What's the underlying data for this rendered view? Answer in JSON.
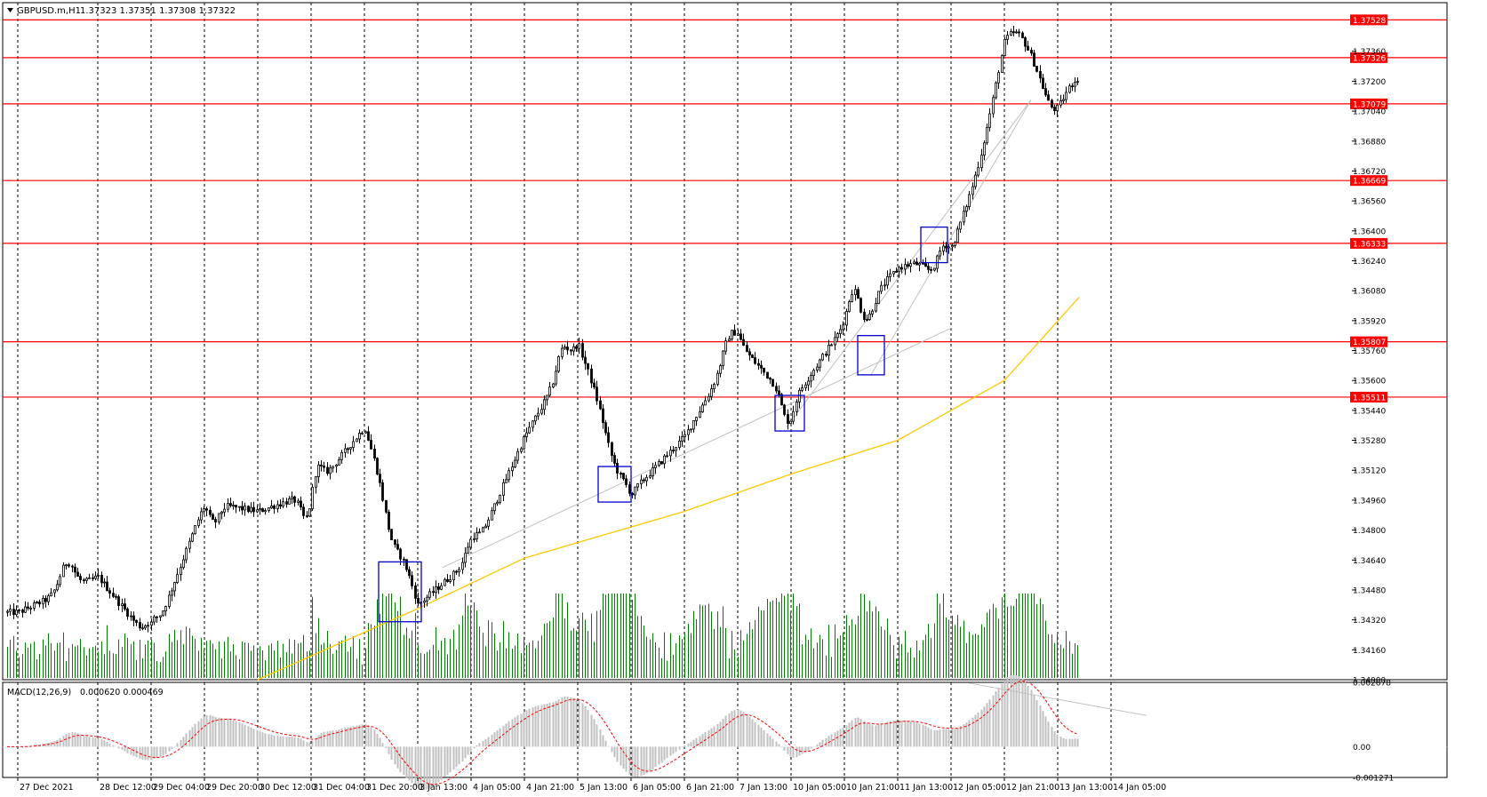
{
  "symbol_header": {
    "symbol": "GBPUSD.m,H1",
    "ohlc": "1.37323 1.37351 1.37308 1.37322"
  },
  "indicator_header": {
    "name": "MACD(12,26,9)",
    "values": "0.000620 0.000469"
  },
  "colors": {
    "background": "#ffffff",
    "grid": "#000000",
    "candle": "#000000",
    "level_line": "#ff0000",
    "level_label_bg": "#ff0000",
    "ma_line": "#ffc800",
    "volume": "#008000",
    "macd_hist": "#c0c0c0",
    "macd_signal": "#ff0000",
    "box": "#0000cc",
    "trendline": "#c0c0c0"
  },
  "icons": {
    "menu": "triangle-down-icon"
  },
  "chart_data": [
    {
      "type": "candlestick",
      "title": "GBPUSD.m,H1",
      "timeframe": "H1",
      "y_axis": {
        "range": [
          1.34,
          1.3762
        ],
        "ticks": [
          "1.37360",
          "1.37200",
          "1.37040",
          "1.36880",
          "1.36720",
          "1.36560",
          "1.36400",
          "1.36240",
          "1.36080",
          "1.35920",
          "1.35760",
          "1.35600",
          "1.35440",
          "1.35280",
          "1.35120",
          "1.34960",
          "1.34800",
          "1.34640",
          "1.34480",
          "1.34320",
          "1.34160",
          "1.34000"
        ]
      },
      "x_axis": {
        "time_labels": [
          "27 Dec 2021",
          "28 Dec 12:00",
          "29 Dec 04:00",
          "29 Dec 20:00",
          "30 Dec 12:00",
          "31 Dec 04:00",
          "31 Dec 20:00",
          "3 Jan 13:00",
          "4 Jan 05:00",
          "4 Jan 21:00",
          "5 Jan 13:00",
          "6 Jan 05:00",
          "6 Jan 21:00",
          "7 Jan 13:00",
          "10 Jan 05:00",
          "10 Jan 21:00",
          "11 Jan 13:00",
          "12 Jan 05:00",
          "12 Jan 21:00",
          "13 Jan 13:00",
          "14 Jan 05:00"
        ]
      },
      "horizontal_levels": [
        "1.37528",
        "1.37326",
        "1.37079",
        "1.36669",
        "1.36333",
        "1.35807",
        "1.35511"
      ],
      "series_key_points": [
        {
          "time": "27 Dec 2021",
          "price": 1.3436
        },
        {
          "time": "28 Dec 12:00",
          "price": 1.3455
        },
        {
          "time": "29 Dec 04:00",
          "price": 1.342
        },
        {
          "time": "29 Dec 20:00",
          "price": 1.3495
        },
        {
          "time": "30 Dec 12:00",
          "price": 1.349
        },
        {
          "time": "31 Dec 04:00",
          "price": 1.35
        },
        {
          "time": "31 Dec 20:00",
          "price": 1.3535
        },
        {
          "time": "3 Jan 13:00",
          "price": 1.344
        },
        {
          "time": "4 Jan 05:00",
          "price": 1.3465
        },
        {
          "time": "4 Jan 21:00",
          "price": 1.353
        },
        {
          "time": "5 Jan 13:00",
          "price": 1.358
        },
        {
          "time": "6 Jan 05:00",
          "price": 1.35
        },
        {
          "time": "6 Jan 21:00",
          "price": 1.353
        },
        {
          "time": "7 Jan 13:00",
          "price": 1.358
        },
        {
          "time": "10 Jan 05:00",
          "price": 1.3548
        },
        {
          "time": "10 Jan 21:00",
          "price": 1.359
        },
        {
          "time": "11 Jan 13:00",
          "price": 1.362
        },
        {
          "time": "12 Jan 05:00",
          "price": 1.363
        },
        {
          "time": "12 Jan 21:00",
          "price": 1.371
        },
        {
          "time": "13 Jan 13:00",
          "price": 1.3715
        },
        {
          "time": "14 Jan 05:00",
          "price": 1.3733
        }
      ],
      "moving_average_key_points": [
        {
          "time": "30 Dec 12:00",
          "price": 1.34
        },
        {
          "time": "3 Jan 13:00",
          "price": 1.3438
        },
        {
          "time": "4 Jan 21:00",
          "price": 1.3465
        },
        {
          "time": "6 Jan 21:00",
          "price": 1.349
        },
        {
          "time": "10 Jan 05:00",
          "price": 1.351
        },
        {
          "time": "11 Jan 13:00",
          "price": 1.3528
        },
        {
          "time": "12 Jan 21:00",
          "price": 1.356
        },
        {
          "time": "14 Jan 05:00",
          "price": 1.3605
        }
      ]
    },
    {
      "type": "histogram",
      "title": "MACD(12,26,9)",
      "y_axis": {
        "range": [
          -0.00128,
          0.00268
        ],
        "ticks": [
          "0.002678",
          "0.00",
          "-0.001271"
        ]
      },
      "series": [
        {
          "name": "MACD(12,26,9)"
        },
        {
          "name": "signal"
        }
      ]
    }
  ]
}
